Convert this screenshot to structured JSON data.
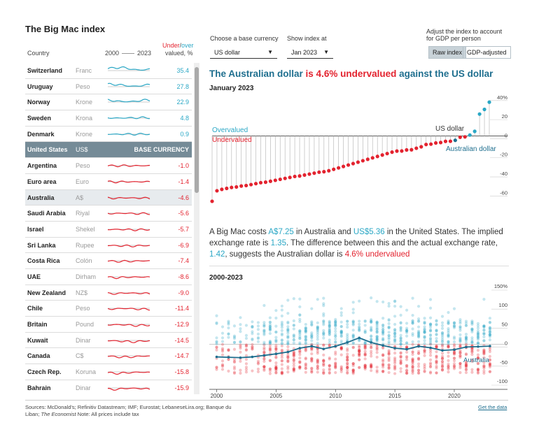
{
  "title": "The Big Mac index",
  "table_header": {
    "country": "Country",
    "years_start": "2000",
    "years_end": "2023",
    "under": "Under",
    "slash": "/",
    "over": "over",
    "valued": "valued, %"
  },
  "controls": {
    "base_label": "Choose a base currency",
    "base_value": "US dollar",
    "date_label": "Show index at",
    "date_value": "Jan 2023",
    "adjust_label_1": "Adjust the index to account",
    "adjust_label_2": "for GDP per person",
    "raw": "Raw index",
    "gdp": "GDP-adjusted"
  },
  "headline": {
    "p1": "The Australian dollar",
    "p2": "is 4.6% undervalued",
    "p3": "against the US dollar"
  },
  "subtitle": "January 2023",
  "countries": [
    {
      "name": "Switzerland",
      "currency": "Franc",
      "value": "35.4"
    },
    {
      "name": "Uruguay",
      "currency": "Peso",
      "value": "27.8"
    },
    {
      "name": "Norway",
      "currency": "Krone",
      "value": "22.9"
    },
    {
      "name": "Sweden",
      "currency": "Krona",
      "value": "4.8"
    },
    {
      "name": "Denmark",
      "currency": "Krone",
      "value": "0.9"
    },
    {
      "name": "United States",
      "currency": "US$",
      "value": "BASE CURRENCY"
    },
    {
      "name": "Argentina",
      "currency": "Peso",
      "value": "-1.0"
    },
    {
      "name": "Euro area",
      "currency": "Euro",
      "value": "-1.4"
    },
    {
      "name": "Australia",
      "currency": "A$",
      "value": "-4.6"
    },
    {
      "name": "Saudi Arabia",
      "currency": "Riyal",
      "value": "-5.6"
    },
    {
      "name": "Israel",
      "currency": "Shekel",
      "value": "-5.7"
    },
    {
      "name": "Sri Lanka",
      "currency": "Rupee",
      "value": "-6.9"
    },
    {
      "name": "Costa Rica",
      "currency": "Colón",
      "value": "-7.4"
    },
    {
      "name": "UAE",
      "currency": "Dirham",
      "value": "-8.6"
    },
    {
      "name": "New Zealand",
      "currency": "NZ$",
      "value": "-9.0"
    },
    {
      "name": "Chile",
      "currency": "Peso",
      "value": "-11.4"
    },
    {
      "name": "Britain",
      "currency": "Pound",
      "value": "-12.9"
    },
    {
      "name": "Kuwait",
      "currency": "Dinar",
      "value": "-14.5"
    },
    {
      "name": "Canada",
      "currency": "C$",
      "value": "-14.7"
    },
    {
      "name": "Czech Rep.",
      "currency": "Koruna",
      "value": "-15.8"
    },
    {
      "name": "Bahrain",
      "currency": "Dinar",
      "value": "-15.9"
    }
  ],
  "paragraph": {
    "a": "A Big Mac costs ",
    "b": "A$7.25",
    "c": " in Australia and ",
    "d": "US$5.36",
    "e": " in the United States. The implied exchange rate is ",
    "f": "1.35",
    "g": ". The difference between this and the actual exchange rate, ",
    "h": "1.42",
    "i": ", suggests the Australian dollar is ",
    "j": "4.6% undervalued"
  },
  "section2": "2000-2023",
  "footer": {
    "l1": "Sources: McDonald's; Refinitiv Datastream; IMF; Eurostat; LebaneseLira.org; Banque du",
    "l2a": "Liban; ",
    "l2b": "The Economist",
    "l2c": "     Note: All prices include tax"
  },
  "get_data": "Get the data",
  "colors": {
    "over": "#2aa7c5",
    "under": "#e3232f",
    "highlight": "#1f6f8f",
    "base": "#758b97"
  },
  "chart_data": [
    {
      "type": "lollipop",
      "title": "January 2023",
      "ylim": [
        -70,
        45
      ],
      "yticks": [
        "40%",
        "20",
        "0",
        "-20",
        "-40",
        "-60"
      ],
      "ytick_values": [
        40,
        20,
        0,
        -20,
        -40,
        -60
      ],
      "labels": {
        "over": "Overvalued",
        "under": "Undervalued",
        "base": "US dollar",
        "highlight": "Australian dollar"
      },
      "values": [
        -68.5,
        -57.5,
        -56,
        -55,
        -54,
        -53.5,
        -52.5,
        -52,
        -51,
        -50,
        -49,
        -48.5,
        -47.5,
        -46.5,
        -45.5,
        -44.5,
        -43.5,
        -42.5,
        -42,
        -41,
        -40,
        -39,
        -38,
        -37.5,
        -36.5,
        -35,
        -33.5,
        -32,
        -30.5,
        -29,
        -27.5,
        -26,
        -24.5,
        -23,
        -21.5,
        -20,
        -18.5,
        -17,
        -15.9,
        -15.8,
        -14.7,
        -14.5,
        -12.9,
        -11.4,
        -9.0,
        -8.6,
        -7.4,
        -6.9,
        -5.7,
        -5.6,
        -4.6,
        -1.4,
        -1.0,
        0.9,
        4.8,
        22.9,
        27.8,
        35.4
      ],
      "highlight_value": -4.6
    },
    {
      "type": "scatter-line",
      "title": "2000-2023",
      "ylim": [
        -100,
        150
      ],
      "yticks": [
        "150%",
        "100",
        "50",
        "0",
        "-50",
        "-100"
      ],
      "ytick_values": [
        150,
        100,
        50,
        0,
        -50,
        -100
      ],
      "x_ticks": [
        "2000",
        "2005",
        "2010",
        "2015",
        "2020"
      ],
      "x_tick_values": [
        2000,
        2005,
        2010,
        2015,
        2020
      ],
      "xlim": [
        1999.5,
        2023.3
      ],
      "highlight_name": "Australia",
      "highlight_series": [
        [
          2000,
          -33
        ],
        [
          2001,
          -34
        ],
        [
          2002,
          -35
        ],
        [
          2003,
          -33
        ],
        [
          2004,
          -29
        ],
        [
          2005,
          -25
        ],
        [
          2006,
          -20
        ],
        [
          2007,
          -10
        ],
        [
          2008,
          -5
        ],
        [
          2009,
          -12
        ],
        [
          2010,
          -5
        ],
        [
          2011,
          5
        ],
        [
          2012,
          17
        ],
        [
          2013,
          5
        ],
        [
          2014,
          -3
        ],
        [
          2015,
          -10
        ],
        [
          2016,
          -13
        ],
        [
          2017,
          -5
        ],
        [
          2018,
          -9
        ],
        [
          2019,
          -16
        ],
        [
          2020,
          -14
        ],
        [
          2021,
          -7
        ],
        [
          2022,
          -6
        ],
        [
          2023,
          -4.6
        ]
      ]
    }
  ]
}
